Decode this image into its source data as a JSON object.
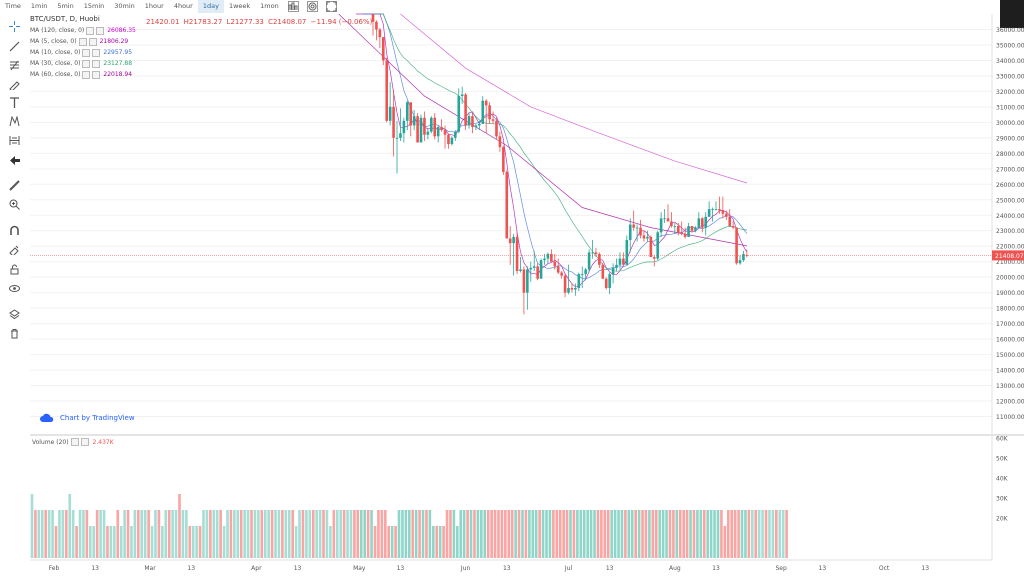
{
  "toolbar": {
    "timeframes": [
      "Time",
      "1min",
      "5min",
      "15min",
      "30min",
      "1hour",
      "4hour",
      "1day",
      "1week",
      "1mon"
    ],
    "active": "1day"
  },
  "header": {
    "symbol": "BTC/USDT, D, Huobi",
    "open": "21420.01",
    "high": "H21783.27",
    "low": "L21277.33",
    "close": "C21408.07",
    "change": "−11.94 (−0.06%)"
  },
  "ma_legend": [
    {
      "label": "MA (120, close, 0)",
      "value": "26086.35",
      "color": "#cc00cc"
    },
    {
      "label": "MA (5, close, 0)",
      "value": "21806.29",
      "color": "#aa00aa"
    },
    {
      "label": "MA (10, close, 0)",
      "value": "22957.95",
      "color": "#3b6fd8"
    },
    {
      "label": "MA (30, close, 0)",
      "value": "23127.88",
      "color": "#29a36a"
    },
    {
      "label": "MA (60, close, 0)",
      "value": "22018.94",
      "color": "#a0009a"
    }
  ],
  "branding": {
    "text": "Chart by TradingView"
  },
  "volume": {
    "label": "Volume (20)",
    "value": "2.437K"
  },
  "colors": {
    "up": "#26a69a",
    "down": "#ef5350",
    "price_line": "#ef5350"
  },
  "chart_data": {
    "type": "candlestick",
    "price_axis": {
      "ylim": [
        10000,
        37000
      ],
      "ticks": [
        "36000.00",
        "35000.00",
        "34000.00",
        "33000.00",
        "32000.00",
        "31000.00",
        "30000.00",
        "29000.00",
        "28000.00",
        "27000.00",
        "26000.00",
        "25000.00",
        "24000.00",
        "23000.00",
        "22000.00",
        "21000.00",
        "20000.00",
        "19000.00",
        "18000.00",
        "17000.00",
        "16000.00",
        "15000.00",
        "14000.00",
        "13000.00",
        "12000.00",
        "11000.00"
      ],
      "last_price": 21408.07,
      "last_price_label": "21408.07"
    },
    "volume_axis": {
      "ylim": [
        0,
        60000
      ],
      "ticks": [
        "60K",
        "50K",
        "40K",
        "30K",
        "20K"
      ]
    },
    "x_axis": {
      "ticks": [
        "Feb",
        "13",
        "Mar",
        "13",
        "Apr",
        "13",
        "May",
        "13",
        "Jun",
        "13",
        "Jul",
        "13",
        "Aug",
        "13",
        "Sep",
        "13",
        "Oct",
        "13"
      ]
    },
    "candles": [
      {
        "d": "2022-04-30",
        "o": 38600,
        "h": 38800,
        "l": 37600,
        "c": 37700
      },
      {
        "d": "2022-05-01",
        "o": 37700,
        "h": 38700,
        "l": 37500,
        "c": 38500
      },
      {
        "d": "2022-05-02",
        "o": 38500,
        "h": 39100,
        "l": 38100,
        "c": 38500
      },
      {
        "d": "2022-05-03",
        "o": 38500,
        "h": 38600,
        "l": 37500,
        "c": 37700
      },
      {
        "d": "2022-05-04",
        "o": 37700,
        "h": 39900,
        "l": 37700,
        "c": 39700
      },
      {
        "d": "2022-05-05",
        "o": 39700,
        "h": 39800,
        "l": 35600,
        "c": 36500
      },
      {
        "d": "2022-05-06",
        "o": 36500,
        "h": 36600,
        "l": 35300,
        "c": 36000
      },
      {
        "d": "2022-05-07",
        "o": 36000,
        "h": 36100,
        "l": 34800,
        "c": 35500
      },
      {
        "d": "2022-05-08",
        "o": 35500,
        "h": 35500,
        "l": 33700,
        "c": 34000
      },
      {
        "d": "2022-05-09",
        "o": 34000,
        "h": 34200,
        "l": 30000,
        "c": 30100
      },
      {
        "d": "2022-05-10",
        "o": 30100,
        "h": 32600,
        "l": 29800,
        "c": 31000
      },
      {
        "d": "2022-05-11",
        "o": 31000,
        "h": 32100,
        "l": 27800,
        "c": 29000
      },
      {
        "d": "2022-05-12",
        "o": 29000,
        "h": 30100,
        "l": 26700,
        "c": 29000
      },
      {
        "d": "2022-05-13",
        "o": 29000,
        "h": 30900,
        "l": 28800,
        "c": 29300
      },
      {
        "d": "2022-05-14",
        "o": 29300,
        "h": 30300,
        "l": 28700,
        "c": 30100
      },
      {
        "d": "2022-05-15",
        "o": 30100,
        "h": 31400,
        "l": 29500,
        "c": 31300
      },
      {
        "d": "2022-05-16",
        "o": 31300,
        "h": 31300,
        "l": 29100,
        "c": 29800
      },
      {
        "d": "2022-05-17",
        "o": 29800,
        "h": 30800,
        "l": 29500,
        "c": 30400
      },
      {
        "d": "2022-05-18",
        "o": 30400,
        "h": 30600,
        "l": 28700,
        "c": 28700
      },
      {
        "d": "2022-05-19",
        "o": 28700,
        "h": 30500,
        "l": 28700,
        "c": 30300
      },
      {
        "d": "2022-05-20",
        "o": 30300,
        "h": 30700,
        "l": 28800,
        "c": 29200
      },
      {
        "d": "2022-05-21",
        "o": 29200,
        "h": 29600,
        "l": 28900,
        "c": 29400
      },
      {
        "d": "2022-05-22",
        "o": 29400,
        "h": 30400,
        "l": 29300,
        "c": 30300
      },
      {
        "d": "2022-05-23",
        "o": 30300,
        "h": 30600,
        "l": 28900,
        "c": 29100
      },
      {
        "d": "2022-05-24",
        "o": 29100,
        "h": 29800,
        "l": 28700,
        "c": 29700
      },
      {
        "d": "2022-05-25",
        "o": 29700,
        "h": 30200,
        "l": 29400,
        "c": 29500
      },
      {
        "d": "2022-05-26",
        "o": 29500,
        "h": 29800,
        "l": 28300,
        "c": 29200
      },
      {
        "d": "2022-05-27",
        "o": 29200,
        "h": 29300,
        "l": 28300,
        "c": 28600
      },
      {
        "d": "2022-05-28",
        "o": 28600,
        "h": 29100,
        "l": 28500,
        "c": 29000
      },
      {
        "d": "2022-05-29",
        "o": 29000,
        "h": 29500,
        "l": 28800,
        "c": 29400
      },
      {
        "d": "2022-05-30",
        "o": 29400,
        "h": 32200,
        "l": 29300,
        "c": 31700
      },
      {
        "d": "2022-05-31",
        "o": 31700,
        "h": 32300,
        "l": 31200,
        "c": 31800
      },
      {
        "d": "2022-06-01",
        "o": 31800,
        "h": 31900,
        "l": 29500,
        "c": 29800
      },
      {
        "d": "2022-06-02",
        "o": 29800,
        "h": 30600,
        "l": 29600,
        "c": 30400
      },
      {
        "d": "2022-06-03",
        "o": 30400,
        "h": 30600,
        "l": 29300,
        "c": 29700
      },
      {
        "d": "2022-06-04",
        "o": 29700,
        "h": 29900,
        "l": 29500,
        "c": 29800
      },
      {
        "d": "2022-06-05",
        "o": 29800,
        "h": 30100,
        "l": 29500,
        "c": 29900
      },
      {
        "d": "2022-06-06",
        "o": 29900,
        "h": 31700,
        "l": 29900,
        "c": 31400
      },
      {
        "d": "2022-06-07",
        "o": 31400,
        "h": 31500,
        "l": 29300,
        "c": 31100
      },
      {
        "d": "2022-06-08",
        "o": 31100,
        "h": 31300,
        "l": 29900,
        "c": 30200
      },
      {
        "d": "2022-06-09",
        "o": 30200,
        "h": 30700,
        "l": 29900,
        "c": 30100
      },
      {
        "d": "2022-06-10",
        "o": 30100,
        "h": 30300,
        "l": 28900,
        "c": 29100
      },
      {
        "d": "2022-06-11",
        "o": 29100,
        "h": 29400,
        "l": 28100,
        "c": 28400
      },
      {
        "d": "2022-06-12",
        "o": 28400,
        "h": 28500,
        "l": 26600,
        "c": 26800
      },
      {
        "d": "2022-06-13",
        "o": 26800,
        "h": 26900,
        "l": 22600,
        "c": 22500
      },
      {
        "d": "2022-06-14",
        "o": 22500,
        "h": 23300,
        "l": 20800,
        "c": 22200
      },
      {
        "d": "2022-06-15",
        "o": 22200,
        "h": 22800,
        "l": 20100,
        "c": 22600
      },
      {
        "d": "2022-06-16",
        "o": 22600,
        "h": 22900,
        "l": 20200,
        "c": 20400
      },
      {
        "d": "2022-06-17",
        "o": 20400,
        "h": 21300,
        "l": 20300,
        "c": 20500
      },
      {
        "d": "2022-06-18",
        "o": 20500,
        "h": 20700,
        "l": 17600,
        "c": 19000
      },
      {
        "d": "2022-06-19",
        "o": 19000,
        "h": 20700,
        "l": 17900,
        "c": 20500
      },
      {
        "d": "2022-06-20",
        "o": 20500,
        "h": 21000,
        "l": 19700,
        "c": 20600
      },
      {
        "d": "2022-06-21",
        "o": 20600,
        "h": 21700,
        "l": 20400,
        "c": 20700
      },
      {
        "d": "2022-06-22",
        "o": 20700,
        "h": 20900,
        "l": 19800,
        "c": 19900
      },
      {
        "d": "2022-06-23",
        "o": 19900,
        "h": 21200,
        "l": 19900,
        "c": 21100
      },
      {
        "d": "2022-06-24",
        "o": 21100,
        "h": 21500,
        "l": 20800,
        "c": 21200
      },
      {
        "d": "2022-06-25",
        "o": 21200,
        "h": 21600,
        "l": 20900,
        "c": 21500
      },
      {
        "d": "2022-06-26",
        "o": 21500,
        "h": 21800,
        "l": 21000,
        "c": 21000
      },
      {
        "d": "2022-06-27",
        "o": 21000,
        "h": 21500,
        "l": 20500,
        "c": 20700
      },
      {
        "d": "2022-06-28",
        "o": 20700,
        "h": 21200,
        "l": 20200,
        "c": 20300
      },
      {
        "d": "2022-06-29",
        "o": 20300,
        "h": 20400,
        "l": 19900,
        "c": 20100
      },
      {
        "d": "2022-06-30",
        "o": 20100,
        "h": 20200,
        "l": 18700,
        "c": 19000
      },
      {
        "d": "2022-07-01",
        "o": 19000,
        "h": 20800,
        "l": 18900,
        "c": 19300
      },
      {
        "d": "2022-07-02",
        "o": 19300,
        "h": 19600,
        "l": 19000,
        "c": 19200
      },
      {
        "d": "2022-07-03",
        "o": 19200,
        "h": 19600,
        "l": 18800,
        "c": 19300
      },
      {
        "d": "2022-07-04",
        "o": 19300,
        "h": 20300,
        "l": 19100,
        "c": 20200
      },
      {
        "d": "2022-07-05",
        "o": 20200,
        "h": 20700,
        "l": 19300,
        "c": 20200
      },
      {
        "d": "2022-07-06",
        "o": 20200,
        "h": 20600,
        "l": 19800,
        "c": 20500
      },
      {
        "d": "2022-07-07",
        "o": 20500,
        "h": 21800,
        "l": 20300,
        "c": 21600
      },
      {
        "d": "2022-07-08",
        "o": 21600,
        "h": 22400,
        "l": 21200,
        "c": 21600
      },
      {
        "d": "2022-07-09",
        "o": 21600,
        "h": 21900,
        "l": 21300,
        "c": 21500
      },
      {
        "d": "2022-07-10",
        "o": 21500,
        "h": 21600,
        "l": 20600,
        "c": 20800
      },
      {
        "d": "2022-07-11",
        "o": 20800,
        "h": 20900,
        "l": 19900,
        "c": 19900
      },
      {
        "d": "2022-07-12",
        "o": 19900,
        "h": 20000,
        "l": 19200,
        "c": 19300
      },
      {
        "d": "2022-07-13",
        "o": 19300,
        "h": 20300,
        "l": 18900,
        "c": 20200
      },
      {
        "d": "2022-07-14",
        "o": 20200,
        "h": 20900,
        "l": 19600,
        "c": 20600
      },
      {
        "d": "2022-07-15",
        "o": 20600,
        "h": 21200,
        "l": 20400,
        "c": 20800
      },
      {
        "d": "2022-07-16",
        "o": 20800,
        "h": 21600,
        "l": 20500,
        "c": 21200
      },
      {
        "d": "2022-07-17",
        "o": 21200,
        "h": 21600,
        "l": 20800,
        "c": 20800
      },
      {
        "d": "2022-07-18",
        "o": 20800,
        "h": 22700,
        "l": 20800,
        "c": 22400
      },
      {
        "d": "2022-07-19",
        "o": 22400,
        "h": 23800,
        "l": 21600,
        "c": 23400
      },
      {
        "d": "2022-07-20",
        "o": 23400,
        "h": 24300,
        "l": 23000,
        "c": 23200
      },
      {
        "d": "2022-07-21",
        "o": 23200,
        "h": 23400,
        "l": 22300,
        "c": 23200
      },
      {
        "d": "2022-07-22",
        "o": 23200,
        "h": 23700,
        "l": 22500,
        "c": 22700
      },
      {
        "d": "2022-07-23",
        "o": 22700,
        "h": 23000,
        "l": 22300,
        "c": 22500
      },
      {
        "d": "2022-07-24",
        "o": 22500,
        "h": 23000,
        "l": 22300,
        "c": 22600
      },
      {
        "d": "2022-07-25",
        "o": 22600,
        "h": 22700,
        "l": 21300,
        "c": 21300
      },
      {
        "d": "2022-07-26",
        "o": 21300,
        "h": 21400,
        "l": 20700,
        "c": 21200
      },
      {
        "d": "2022-07-27",
        "o": 21200,
        "h": 23000,
        "l": 21100,
        "c": 22900
      },
      {
        "d": "2022-07-28",
        "o": 22900,
        "h": 24200,
        "l": 22600,
        "c": 23800
      },
      {
        "d": "2022-07-29",
        "o": 23800,
        "h": 24400,
        "l": 23500,
        "c": 23800
      },
      {
        "d": "2022-07-30",
        "o": 23800,
        "h": 24700,
        "l": 23600,
        "c": 23600
      },
      {
        "d": "2022-07-31",
        "o": 23600,
        "h": 24200,
        "l": 23200,
        "c": 23300
      },
      {
        "d": "2022-08-01",
        "o": 23300,
        "h": 23500,
        "l": 22800,
        "c": 23300
      },
      {
        "d": "2022-08-02",
        "o": 23300,
        "h": 23500,
        "l": 22700,
        "c": 22900
      },
      {
        "d": "2022-08-03",
        "o": 22900,
        "h": 23600,
        "l": 22700,
        "c": 22800
      },
      {
        "d": "2022-08-04",
        "o": 22800,
        "h": 23200,
        "l": 22500,
        "c": 22600
      },
      {
        "d": "2022-08-05",
        "o": 22600,
        "h": 23500,
        "l": 22600,
        "c": 23300
      },
      {
        "d": "2022-08-06",
        "o": 23300,
        "h": 23300,
        "l": 22900,
        "c": 23000
      },
      {
        "d": "2022-08-07",
        "o": 23000,
        "h": 23300,
        "l": 22900,
        "c": 23200
      },
      {
        "d": "2022-08-08",
        "o": 23200,
        "h": 24200,
        "l": 23200,
        "c": 23800
      },
      {
        "d": "2022-08-09",
        "o": 23800,
        "h": 23900,
        "l": 22900,
        "c": 23200
      },
      {
        "d": "2022-08-10",
        "o": 23200,
        "h": 24200,
        "l": 22700,
        "c": 23900
      },
      {
        "d": "2022-08-11",
        "o": 23900,
        "h": 24900,
        "l": 23900,
        "c": 24400
      },
      {
        "d": "2022-08-12",
        "o": 24400,
        "h": 24500,
        "l": 23600,
        "c": 24400
      },
      {
        "d": "2022-08-13",
        "o": 24400,
        "h": 24900,
        "l": 24300,
        "c": 24400
      },
      {
        "d": "2022-08-14",
        "o": 24400,
        "h": 25200,
        "l": 24100,
        "c": 24300
      },
      {
        "d": "2022-08-15",
        "o": 24300,
        "h": 25200,
        "l": 23800,
        "c": 24100
      },
      {
        "d": "2022-08-16",
        "o": 24100,
        "h": 24300,
        "l": 23700,
        "c": 23900
      },
      {
        "d": "2022-08-17",
        "o": 23900,
        "h": 24400,
        "l": 23300,
        "c": 23300
      },
      {
        "d": "2022-08-18",
        "o": 23300,
        "h": 23600,
        "l": 23100,
        "c": 23200
      },
      {
        "d": "2022-08-19",
        "o": 23200,
        "h": 23200,
        "l": 20800,
        "c": 20900
      },
      {
        "d": "2022-08-20",
        "o": 20900,
        "h": 21400,
        "l": 20800,
        "c": 21100
      },
      {
        "d": "2022-08-21",
        "o": 21100,
        "h": 21700,
        "l": 21000,
        "c": 21500
      },
      {
        "d": "2022-08-22",
        "o": 21420.01,
        "h": 21783.27,
        "l": 21277.33,
        "c": 21408.07
      }
    ],
    "volume_bars": [
      4,
      3,
      3,
      3,
      3,
      3,
      3,
      2,
      3,
      3,
      3,
      4,
      3,
      2,
      3,
      3,
      3,
      2,
      2,
      3,
      3,
      3,
      2,
      2,
      2,
      3,
      2,
      3,
      3,
      2,
      3,
      3,
      3,
      3,
      3,
      2,
      3,
      3,
      2,
      3,
      3,
      3,
      3,
      4,
      3,
      3,
      2,
      2,
      2,
      2,
      3,
      3,
      3,
      3,
      3,
      3,
      2,
      3,
      3,
      3,
      3,
      3,
      3,
      3,
      3,
      3,
      3,
      3,
      3,
      3,
      3,
      3,
      3,
      3,
      3,
      3,
      3,
      2,
      3,
      3,
      3,
      3,
      3,
      3,
      3,
      3,
      3,
      2,
      3,
      3,
      3,
      3,
      3,
      3,
      3,
      3,
      3,
      3,
      3,
      3,
      2,
      3,
      3,
      3,
      2,
      2,
      2,
      3,
      3,
      3,
      3,
      3,
      3,
      3,
      3,
      3,
      3,
      2,
      2,
      2,
      2,
      3,
      3,
      3,
      2,
      3,
      3,
      3,
      3,
      3,
      3,
      3,
      3,
      3,
      3,
      3,
      3,
      3,
      3,
      3,
      3,
      3,
      3,
      3,
      3,
      3,
      3,
      3,
      3,
      3,
      3,
      3,
      3,
      3,
      3,
      3,
      3,
      3,
      3,
      3,
      3,
      3,
      3,
      3,
      3,
      3,
      3,
      3,
      3,
      3,
      3,
      3,
      3,
      3,
      3,
      3,
      3,
      3,
      3,
      3,
      3,
      3,
      3,
      3,
      3,
      3,
      3,
      3,
      3,
      3,
      3,
      3,
      3,
      3,
      3,
      3,
      3,
      3,
      3,
      3,
      3,
      3,
      2,
      3,
      3,
      3,
      3,
      3,
      3,
      3,
      3,
      3,
      3,
      3,
      3,
      3,
      3,
      3,
      3,
      3,
      3,
      3,
      3,
      3,
      3,
      3,
      3,
      3,
      3,
      3,
      3,
      3,
      3,
      3,
      3,
      3,
      3,
      3,
      3,
      3,
      3,
      3,
      3,
      3,
      3,
      3,
      3,
      3,
      3,
      3,
      3,
      3,
      3,
      3,
      3,
      3,
      2,
      2,
      2,
      2,
      2,
      2
    ]
  }
}
